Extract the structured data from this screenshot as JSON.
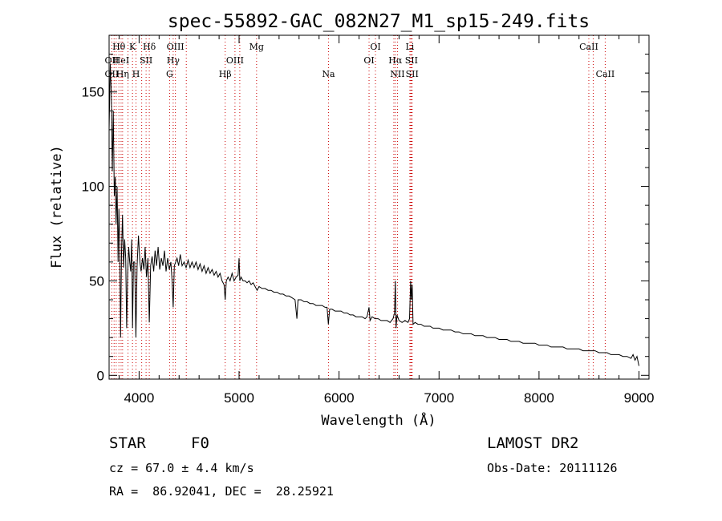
{
  "chart_data": {
    "type": "line",
    "title": "spec-55892-GAC_082N27_M1_sp15-249.fits",
    "xlabel": "Wavelength (Å)",
    "ylabel": "Flux (relative)",
    "xlim": [
      3700,
      9100
    ],
    "ylim": [
      -2,
      180
    ],
    "xticks": [
      4000,
      5000,
      6000,
      7000,
      8000,
      9000
    ],
    "yticks": [
      0,
      50,
      100,
      150
    ],
    "grid": false,
    "series": [
      {
        "values": [
          [
            3700,
            130
          ],
          [
            3712,
            165
          ],
          [
            3722,
            150
          ],
          [
            3732,
            108
          ],
          [
            3742,
            140
          ],
          [
            3752,
            95
          ],
          [
            3762,
            105
          ],
          [
            3770,
            80
          ],
          [
            3780,
            100
          ],
          [
            3790,
            60
          ],
          [
            3798,
            88
          ],
          [
            3806,
            70
          ],
          [
            3815,
            20
          ],
          [
            3824,
            65
          ],
          [
            3834,
            85
          ],
          [
            3845,
            57
          ],
          [
            3856,
            72
          ],
          [
            3866,
            62
          ],
          [
            3876,
            25
          ],
          [
            3886,
            55
          ],
          [
            3896,
            68
          ],
          [
            3906,
            60
          ],
          [
            3916,
            55
          ],
          [
            3926,
            72
          ],
          [
            3934,
            25
          ],
          [
            3944,
            60
          ],
          [
            3956,
            60
          ],
          [
            3968,
            20
          ],
          [
            3980,
            58
          ],
          [
            3994,
            74
          ],
          [
            4008,
            60
          ],
          [
            4020,
            55
          ],
          [
            4034,
            62
          ],
          [
            4048,
            56
          ],
          [
            4060,
            68
          ],
          [
            4074,
            52
          ],
          [
            4088,
            62
          ],
          [
            4102,
            28
          ],
          [
            4116,
            58
          ],
          [
            4130,
            63
          ],
          [
            4146,
            55
          ],
          [
            4160,
            66
          ],
          [
            4174,
            58
          ],
          [
            4190,
            68
          ],
          [
            4206,
            56
          ],
          [
            4222,
            62
          ],
          [
            4238,
            58
          ],
          [
            4254,
            66
          ],
          [
            4270,
            55
          ],
          [
            4286,
            62
          ],
          [
            4302,
            56
          ],
          [
            4318,
            60
          ],
          [
            4330,
            50
          ],
          [
            4341,
            36
          ],
          [
            4352,
            58
          ],
          [
            4366,
            60
          ],
          [
            4380,
            62
          ],
          [
            4396,
            58
          ],
          [
            4412,
            64
          ],
          [
            4430,
            58
          ],
          [
            4450,
            60
          ],
          [
            4470,
            57
          ],
          [
            4490,
            61
          ],
          [
            4510,
            57
          ],
          [
            4530,
            60
          ],
          [
            4550,
            57
          ],
          [
            4570,
            60
          ],
          [
            4590,
            56
          ],
          [
            4610,
            59
          ],
          [
            4630,
            55
          ],
          [
            4650,
            58
          ],
          [
            4670,
            54
          ],
          [
            4690,
            57
          ],
          [
            4710,
            54
          ],
          [
            4730,
            56
          ],
          [
            4750,
            53
          ],
          [
            4770,
            55
          ],
          [
            4790,
            52
          ],
          [
            4810,
            54
          ],
          [
            4830,
            50
          ],
          [
            4850,
            48
          ],
          [
            4861,
            40
          ],
          [
            4872,
            50
          ],
          [
            4890,
            52
          ],
          [
            4910,
            50
          ],
          [
            4930,
            54
          ],
          [
            4950,
            50
          ],
          [
            4970,
            52
          ],
          [
            4990,
            53
          ],
          [
            5000,
            62
          ],
          [
            5007,
            50
          ],
          [
            5020,
            52
          ],
          [
            5040,
            50
          ],
          [
            5060,
            50
          ],
          [
            5080,
            49
          ],
          [
            5100,
            50
          ],
          [
            5120,
            48
          ],
          [
            5140,
            49
          ],
          [
            5160,
            47
          ],
          [
            5180,
            45
          ],
          [
            5200,
            47
          ],
          [
            5230,
            46
          ],
          [
            5260,
            46
          ],
          [
            5290,
            45
          ],
          [
            5320,
            45
          ],
          [
            5350,
            44
          ],
          [
            5380,
            44
          ],
          [
            5410,
            43
          ],
          [
            5440,
            43
          ],
          [
            5470,
            42
          ],
          [
            5500,
            42
          ],
          [
            5530,
            41
          ],
          [
            5560,
            40
          ],
          [
            5578,
            30
          ],
          [
            5590,
            40
          ],
          [
            5620,
            40
          ],
          [
            5650,
            39
          ],
          [
            5680,
            39
          ],
          [
            5710,
            38
          ],
          [
            5740,
            38
          ],
          [
            5770,
            37
          ],
          [
            5800,
            37
          ],
          [
            5830,
            37
          ],
          [
            5860,
            36
          ],
          [
            5880,
            36
          ],
          [
            5893,
            27
          ],
          [
            5906,
            35
          ],
          [
            5930,
            35
          ],
          [
            5960,
            34
          ],
          [
            5990,
            34
          ],
          [
            6020,
            34
          ],
          [
            6050,
            33
          ],
          [
            6080,
            33
          ],
          [
            6110,
            32
          ],
          [
            6140,
            32
          ],
          [
            6170,
            31
          ],
          [
            6200,
            31
          ],
          [
            6230,
            31
          ],
          [
            6260,
            30
          ],
          [
            6280,
            31
          ],
          [
            6300,
            36
          ],
          [
            6310,
            29
          ],
          [
            6330,
            31
          ],
          [
            6360,
            30
          ],
          [
            6390,
            30
          ],
          [
            6420,
            29
          ],
          [
            6450,
            29
          ],
          [
            6480,
            29
          ],
          [
            6510,
            28
          ],
          [
            6540,
            30
          ],
          [
            6555,
            33
          ],
          [
            6563,
            50
          ],
          [
            6570,
            25
          ],
          [
            6580,
            32
          ],
          [
            6600,
            29
          ],
          [
            6630,
            28
          ],
          [
            6660,
            29
          ],
          [
            6690,
            28
          ],
          [
            6705,
            30
          ],
          [
            6716,
            50
          ],
          [
            6724,
            40
          ],
          [
            6731,
            48
          ],
          [
            6740,
            27
          ],
          [
            6760,
            28
          ],
          [
            6790,
            27
          ],
          [
            6820,
            27
          ],
          [
            6850,
            26
          ],
          [
            6880,
            26
          ],
          [
            6910,
            26
          ],
          [
            6940,
            25
          ],
          [
            6970,
            25
          ],
          [
            7000,
            25
          ],
          [
            7040,
            24
          ],
          [
            7080,
            24
          ],
          [
            7120,
            24
          ],
          [
            7160,
            23
          ],
          [
            7200,
            23
          ],
          [
            7240,
            22
          ],
          [
            7280,
            22
          ],
          [
            7320,
            22
          ],
          [
            7360,
            21
          ],
          [
            7400,
            21
          ],
          [
            7440,
            21
          ],
          [
            7480,
            20
          ],
          [
            7520,
            20
          ],
          [
            7560,
            20
          ],
          [
            7600,
            19
          ],
          [
            7640,
            19
          ],
          [
            7680,
            19
          ],
          [
            7720,
            18
          ],
          [
            7760,
            18
          ],
          [
            7800,
            18
          ],
          [
            7840,
            17
          ],
          [
            7880,
            17
          ],
          [
            7920,
            17
          ],
          [
            7960,
            17
          ],
          [
            8000,
            16
          ],
          [
            8040,
            16
          ],
          [
            8080,
            16
          ],
          [
            8120,
            15
          ],
          [
            8160,
            15
          ],
          [
            8200,
            15
          ],
          [
            8240,
            15
          ],
          [
            8280,
            14
          ],
          [
            8320,
            14
          ],
          [
            8360,
            14
          ],
          [
            8400,
            14
          ],
          [
            8440,
            13
          ],
          [
            8480,
            13
          ],
          [
            8520,
            13
          ],
          [
            8560,
            13
          ],
          [
            8600,
            12
          ],
          [
            8640,
            12
          ],
          [
            8680,
            12
          ],
          [
            8720,
            11
          ],
          [
            8760,
            11
          ],
          [
            8800,
            11
          ],
          [
            8840,
            10
          ],
          [
            8880,
            10
          ],
          [
            8920,
            9
          ],
          [
            8940,
            11
          ],
          [
            8960,
            8
          ],
          [
            8980,
            10
          ],
          [
            9000,
            5
          ]
        ]
      }
    ],
    "emission_lines": [
      {
        "label": "OII",
        "wavelength": 3727,
        "row": 2
      },
      {
        "label": "OII",
        "wavelength": 3727,
        "row": 3
      },
      {
        "label": "Hθ",
        "wavelength": 3798,
        "row": 1
      },
      {
        "label": "HeI",
        "wavelength": 3820,
        "row": 2
      },
      {
        "label": "Hη",
        "wavelength": 3835,
        "row": 3
      },
      {
        "label": "K",
        "wavelength": 3934,
        "row": 1
      },
      {
        "label": "SII",
        "wavelength": 4070,
        "row": 2
      },
      {
        "label": "H",
        "wavelength": 3969,
        "row": 3
      },
      {
        "label": "Hδ",
        "wavelength": 4102,
        "row": 1
      },
      {
        "label": "OIII",
        "wavelength": 4363,
        "row": 1
      },
      {
        "label": "Hγ",
        "wavelength": 4341,
        "row": 2
      },
      {
        "label": "G",
        "wavelength": 4305,
        "row": 3
      },
      {
        "label": "OIII",
        "wavelength": 4959,
        "row": 2
      },
      {
        "label": "Hβ",
        "wavelength": 4861,
        "row": 3
      },
      {
        "label": "Mg",
        "wavelength": 5175,
        "row": 1
      },
      {
        "label": "Na",
        "wavelength": 5894,
        "row": 3
      },
      {
        "label": "OI",
        "wavelength": 6364,
        "row": 1
      },
      {
        "label": "OI",
        "wavelength": 6300,
        "row": 2
      },
      {
        "label": "Li",
        "wavelength": 6708,
        "row": 1
      },
      {
        "label": "Hα",
        "wavelength": 6563,
        "row": 2
      },
      {
        "label": "SII",
        "wavelength": 6724,
        "row": 2
      },
      {
        "label": "NII",
        "wavelength": 6584,
        "row": 3
      },
      {
        "label": "SII",
        "wavelength": 6731,
        "row": 3
      },
      {
        "label": "CaII",
        "wavelength": 8498,
        "row": 1
      },
      {
        "label": "CaII",
        "wavelength": 8662,
        "row": 3
      }
    ],
    "extra_marker_lines": [
      3750,
      3771,
      3889,
      4026,
      4472,
      5007,
      6548,
      6717,
      8542
    ],
    "colors": {
      "marker_dotted": "#cc0000",
      "spectrum": "#000000"
    }
  },
  "info": {
    "object_class": "STAR",
    "subclass": "F0",
    "survey": "LAMOST DR2",
    "cz": "cz = 67.0 ± 4.4 km/s",
    "obs_date": "Obs-Date: 20111126",
    "coords": "RA =  86.92041, DEC =  28.25921"
  }
}
